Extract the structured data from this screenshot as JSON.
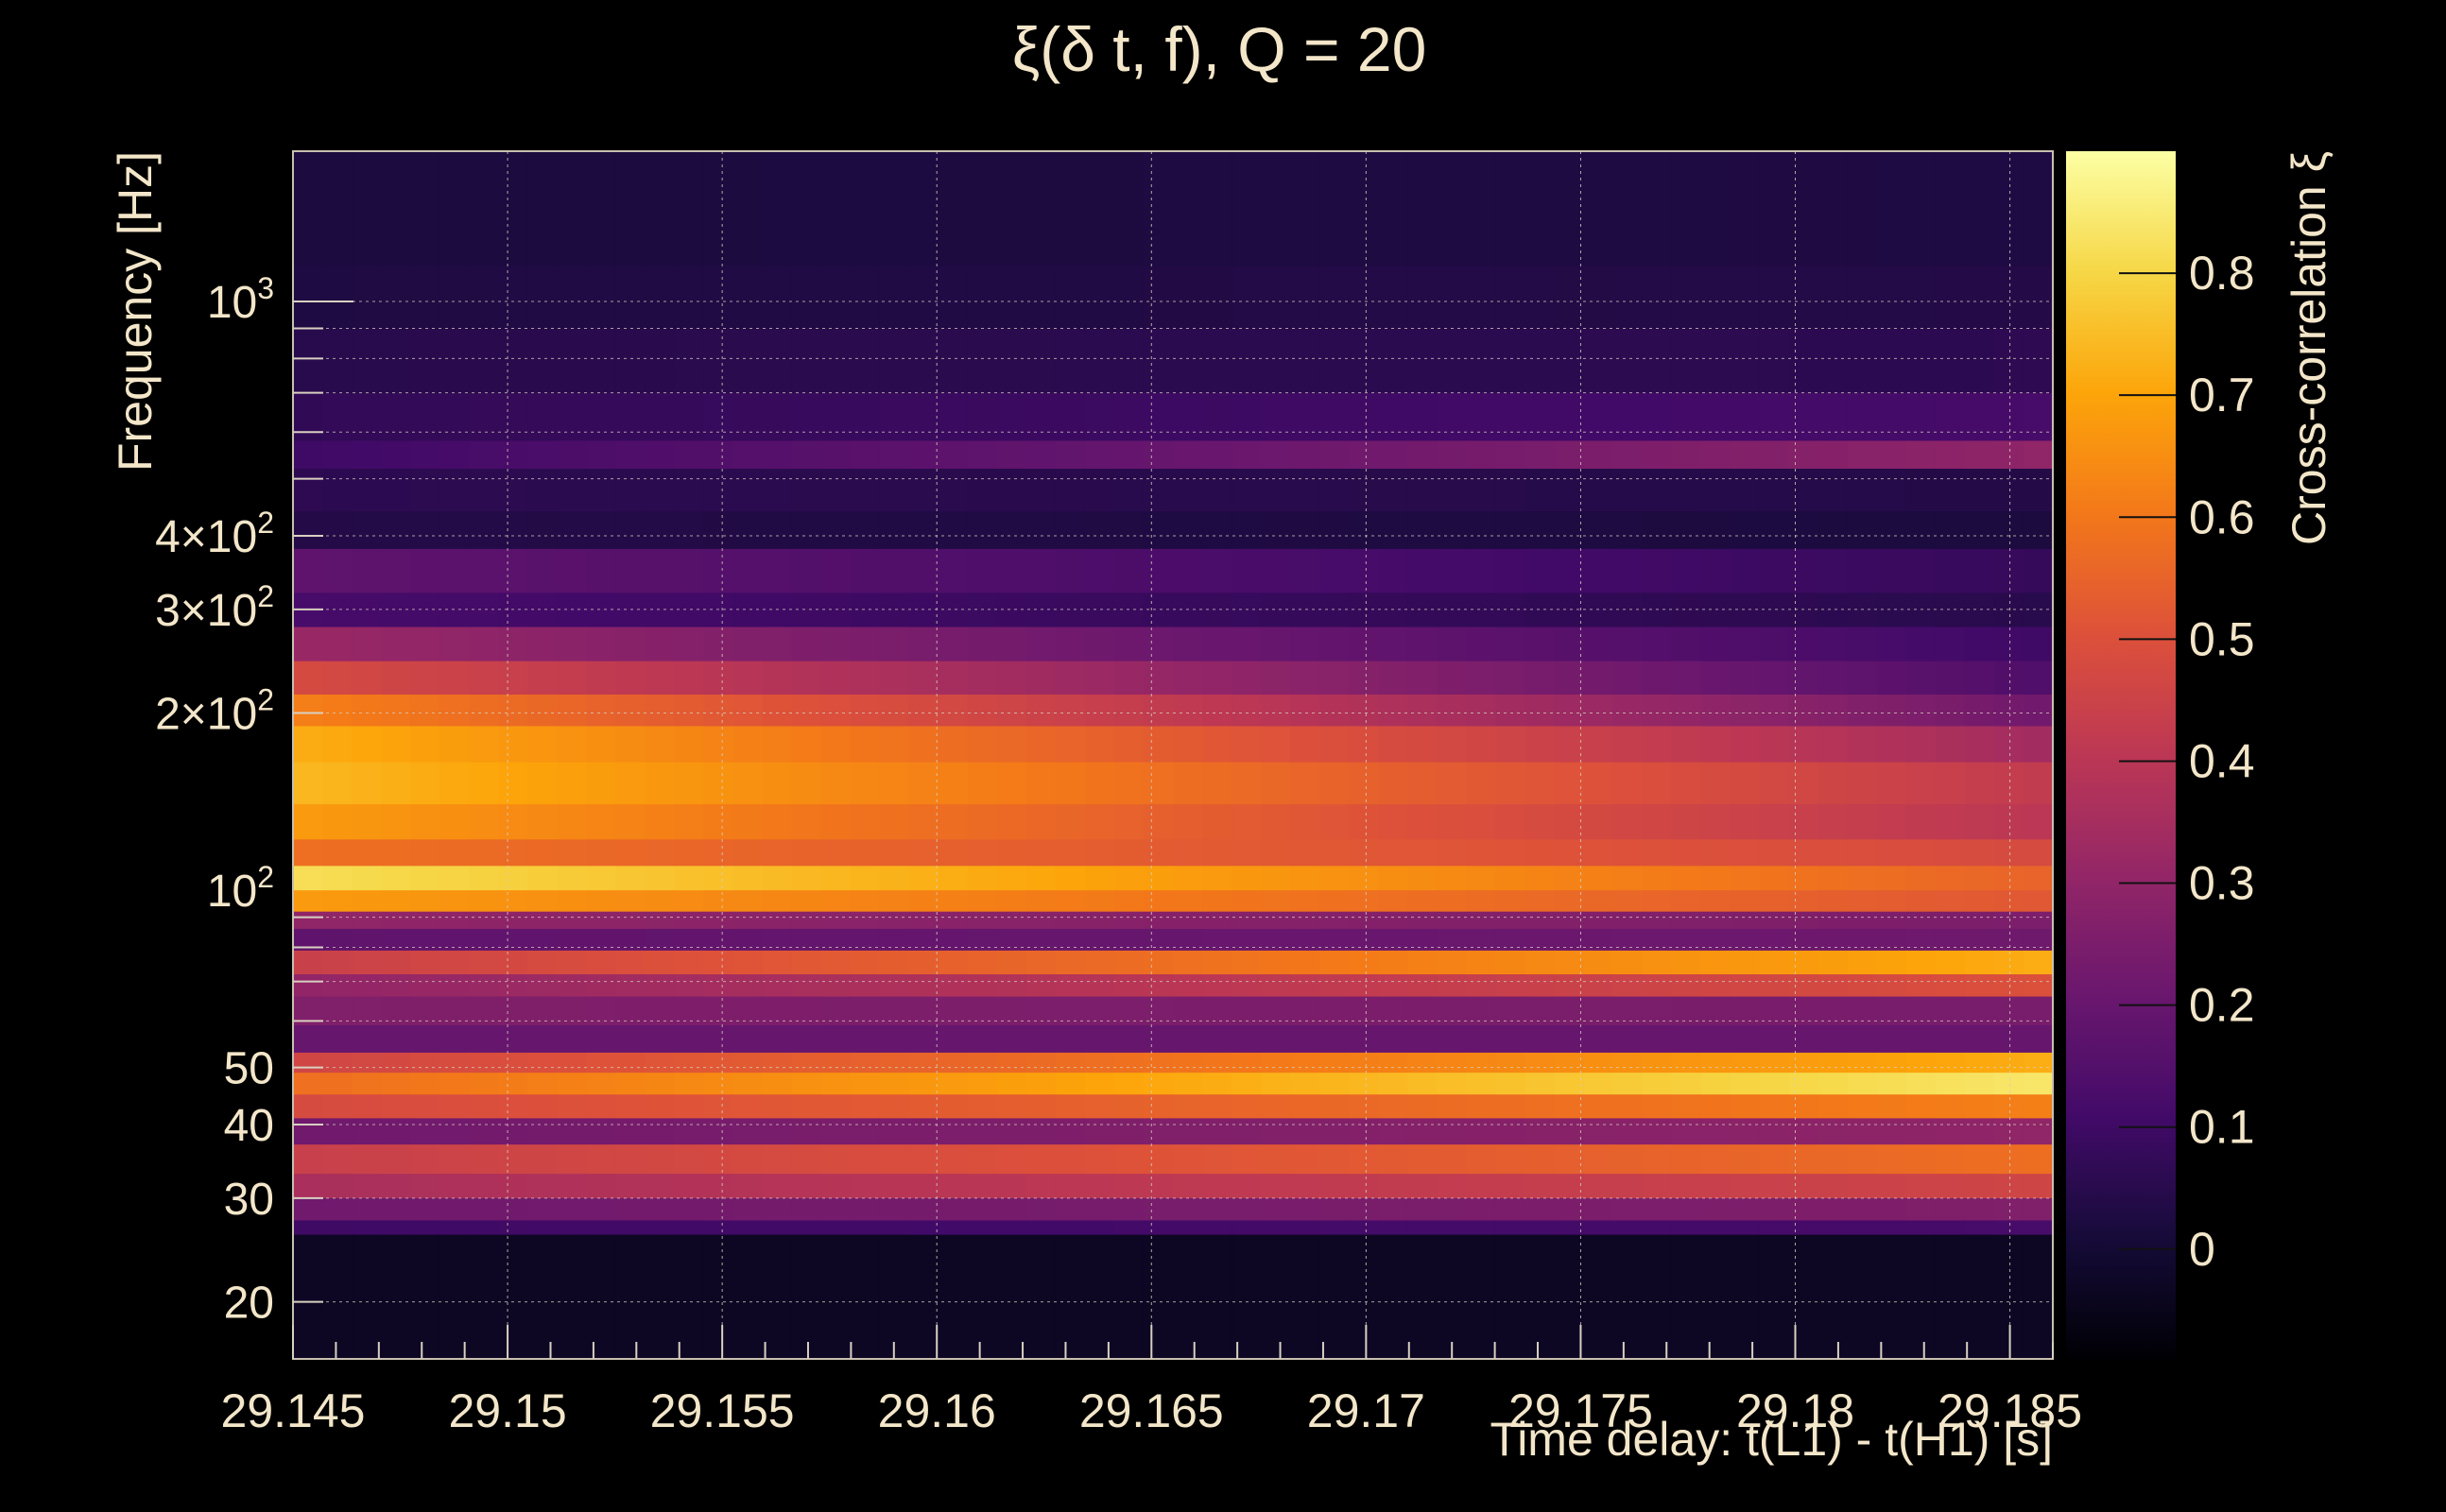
{
  "chart_data": {
    "type": "heatmap",
    "title": "ξ(δ t, f), Q = 20",
    "xlabel": "Time delay: t(L1) - t(H1) [s]",
    "ylabel": "Frequency [Hz]",
    "colorbar_label": "Cross-correlation ξ",
    "x_scale": "linear",
    "y_scale": "log",
    "xlim": [
      29.145,
      29.186
    ],
    "ylim": [
      16,
      1800
    ],
    "clim": [
      -0.09,
      0.9
    ],
    "grid": true,
    "colormap": "inferno",
    "x_ticks": [
      29.145,
      29.15,
      29.155,
      29.16,
      29.165,
      29.17,
      29.175,
      29.18,
      29.185
    ],
    "x_tick_labels": [
      "29.145",
      "29.15",
      "29.155",
      "29.16",
      "29.165",
      "29.17",
      "29.175",
      "29.18",
      "29.185"
    ],
    "y_ticks": [
      {
        "value": 1000,
        "base": "10",
        "exp": "3"
      },
      {
        "value": 400,
        "base": "4×10",
        "exp": "2"
      },
      {
        "value": 300,
        "base": "3×10",
        "exp": "2"
      },
      {
        "value": 200,
        "base": "2×10",
        "exp": "2"
      },
      {
        "value": 100,
        "base": "10",
        "exp": "2"
      },
      {
        "value": 50,
        "base": "50",
        "exp": ""
      },
      {
        "value": 40,
        "base": "40",
        "exp": ""
      },
      {
        "value": 30,
        "base": "30",
        "exp": ""
      },
      {
        "value": 20,
        "base": "20",
        "exp": ""
      }
    ],
    "colorbar_ticks": [
      0,
      0.1,
      0.2,
      0.3,
      0.4,
      0.5,
      0.6,
      0.7,
      0.8
    ],
    "colorbar_tick_labels": [
      "0",
      "0.1",
      "0.2",
      "0.3",
      "0.4",
      "0.5",
      "0.6",
      "0.7",
      "0.8"
    ],
    "bands": [
      {
        "f_lo": 1150,
        "f_hi": 1800,
        "start": 0.02,
        "end": 0.03
      },
      {
        "f_lo": 900,
        "f_hi": 1150,
        "start": 0.03,
        "end": 0.04
      },
      {
        "f_lo": 700,
        "f_hi": 900,
        "start": 0.05,
        "end": 0.06
      },
      {
        "f_lo": 580,
        "f_hi": 700,
        "start": 0.07,
        "end": 0.12
      },
      {
        "f_lo": 520,
        "f_hi": 580,
        "start": 0.1,
        "end": 0.3
      },
      {
        "f_lo": 440,
        "f_hi": 520,
        "start": 0.06,
        "end": 0.04
      },
      {
        "f_lo": 380,
        "f_hi": 440,
        "start": 0.04,
        "end": 0.02
      },
      {
        "f_lo": 320,
        "f_hi": 380,
        "start": 0.18,
        "end": 0.08
      },
      {
        "f_lo": 280,
        "f_hi": 320,
        "start": 0.12,
        "end": 0.05
      },
      {
        "f_lo": 245,
        "f_hi": 280,
        "start": 0.32,
        "end": 0.1
      },
      {
        "f_lo": 215,
        "f_hi": 245,
        "start": 0.48,
        "end": 0.14
      },
      {
        "f_lo": 190,
        "f_hi": 215,
        "start": 0.62,
        "end": 0.22
      },
      {
        "f_lo": 165,
        "f_hi": 190,
        "start": 0.72,
        "end": 0.34
      },
      {
        "f_lo": 140,
        "f_hi": 165,
        "start": 0.74,
        "end": 0.42
      },
      {
        "f_lo": 122,
        "f_hi": 140,
        "start": 0.68,
        "end": 0.4
      },
      {
        "f_lo": 110,
        "f_hi": 122,
        "start": 0.58,
        "end": 0.48
      },
      {
        "f_lo": 100,
        "f_hi": 110,
        "start": 0.82,
        "end": 0.55
      },
      {
        "f_lo": 92,
        "f_hi": 100,
        "start": 0.68,
        "end": 0.52
      },
      {
        "f_lo": 86,
        "f_hi": 92,
        "start": 0.3,
        "end": 0.25
      },
      {
        "f_lo": 79,
        "f_hi": 86,
        "start": 0.18,
        "end": 0.22
      },
      {
        "f_lo": 72,
        "f_hi": 79,
        "start": 0.44,
        "end": 0.72
      },
      {
        "f_lo": 66,
        "f_hi": 72,
        "start": 0.3,
        "end": 0.5
      },
      {
        "f_lo": 59,
        "f_hi": 66,
        "start": 0.26,
        "end": 0.24
      },
      {
        "f_lo": 53,
        "f_hi": 59,
        "start": 0.2,
        "end": 0.2
      },
      {
        "f_lo": 49,
        "f_hi": 53,
        "start": 0.46,
        "end": 0.72
      },
      {
        "f_lo": 45,
        "f_hi": 49,
        "start": 0.58,
        "end": 0.84
      },
      {
        "f_lo": 41,
        "f_hi": 45,
        "start": 0.48,
        "end": 0.62
      },
      {
        "f_lo": 37,
        "f_hi": 41,
        "start": 0.22,
        "end": 0.3
      },
      {
        "f_lo": 33,
        "f_hi": 37,
        "start": 0.44,
        "end": 0.58
      },
      {
        "f_lo": 30,
        "f_hi": 33,
        "start": 0.36,
        "end": 0.46
      },
      {
        "f_lo": 27.5,
        "f_hi": 30,
        "start": 0.22,
        "end": 0.26
      },
      {
        "f_lo": 26,
        "f_hi": 27.5,
        "start": 0.1,
        "end": 0.12
      },
      {
        "f_lo": 16,
        "f_hi": 26,
        "start": -0.03,
        "end": -0.03
      }
    ]
  }
}
